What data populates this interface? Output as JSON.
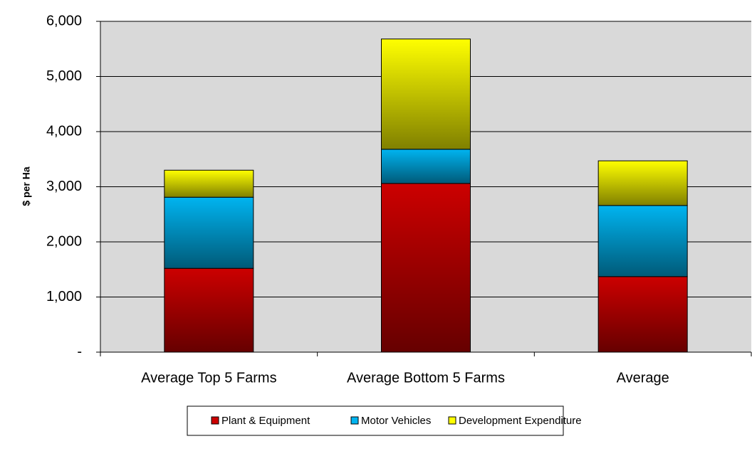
{
  "chart_data": {
    "type": "stacked_bar",
    "y_label": "$ per Ha",
    "categories": [
      "Average Top 5 Farms",
      "Average Bottom 5 Farms",
      "Average"
    ],
    "series": [
      {
        "name": "Plant & Equipment",
        "color": "#cc0000",
        "values": [
          1520,
          3060,
          1370
        ]
      },
      {
        "name": "Motor Vehicles",
        "color": "#00b4f0",
        "values": [
          1290,
          620,
          1290
        ]
      },
      {
        "name": "Development Expenditure",
        "color": "#ffff00",
        "values": [
          490,
          2000,
          810
        ]
      }
    ],
    "ylim": [
      0,
      6000
    ],
    "yticks": [
      {
        "value": 0,
        "label": "-"
      },
      {
        "value": 1000,
        "label": "1,000"
      },
      {
        "value": 2000,
        "label": "2,000"
      },
      {
        "value": 3000,
        "label": "3,000"
      },
      {
        "value": 4000,
        "label": "4,000"
      },
      {
        "value": 5000,
        "label": "5,000"
      },
      {
        "value": 6000,
        "label": "6,000"
      }
    ],
    "grid": true,
    "legend": "bottom"
  }
}
